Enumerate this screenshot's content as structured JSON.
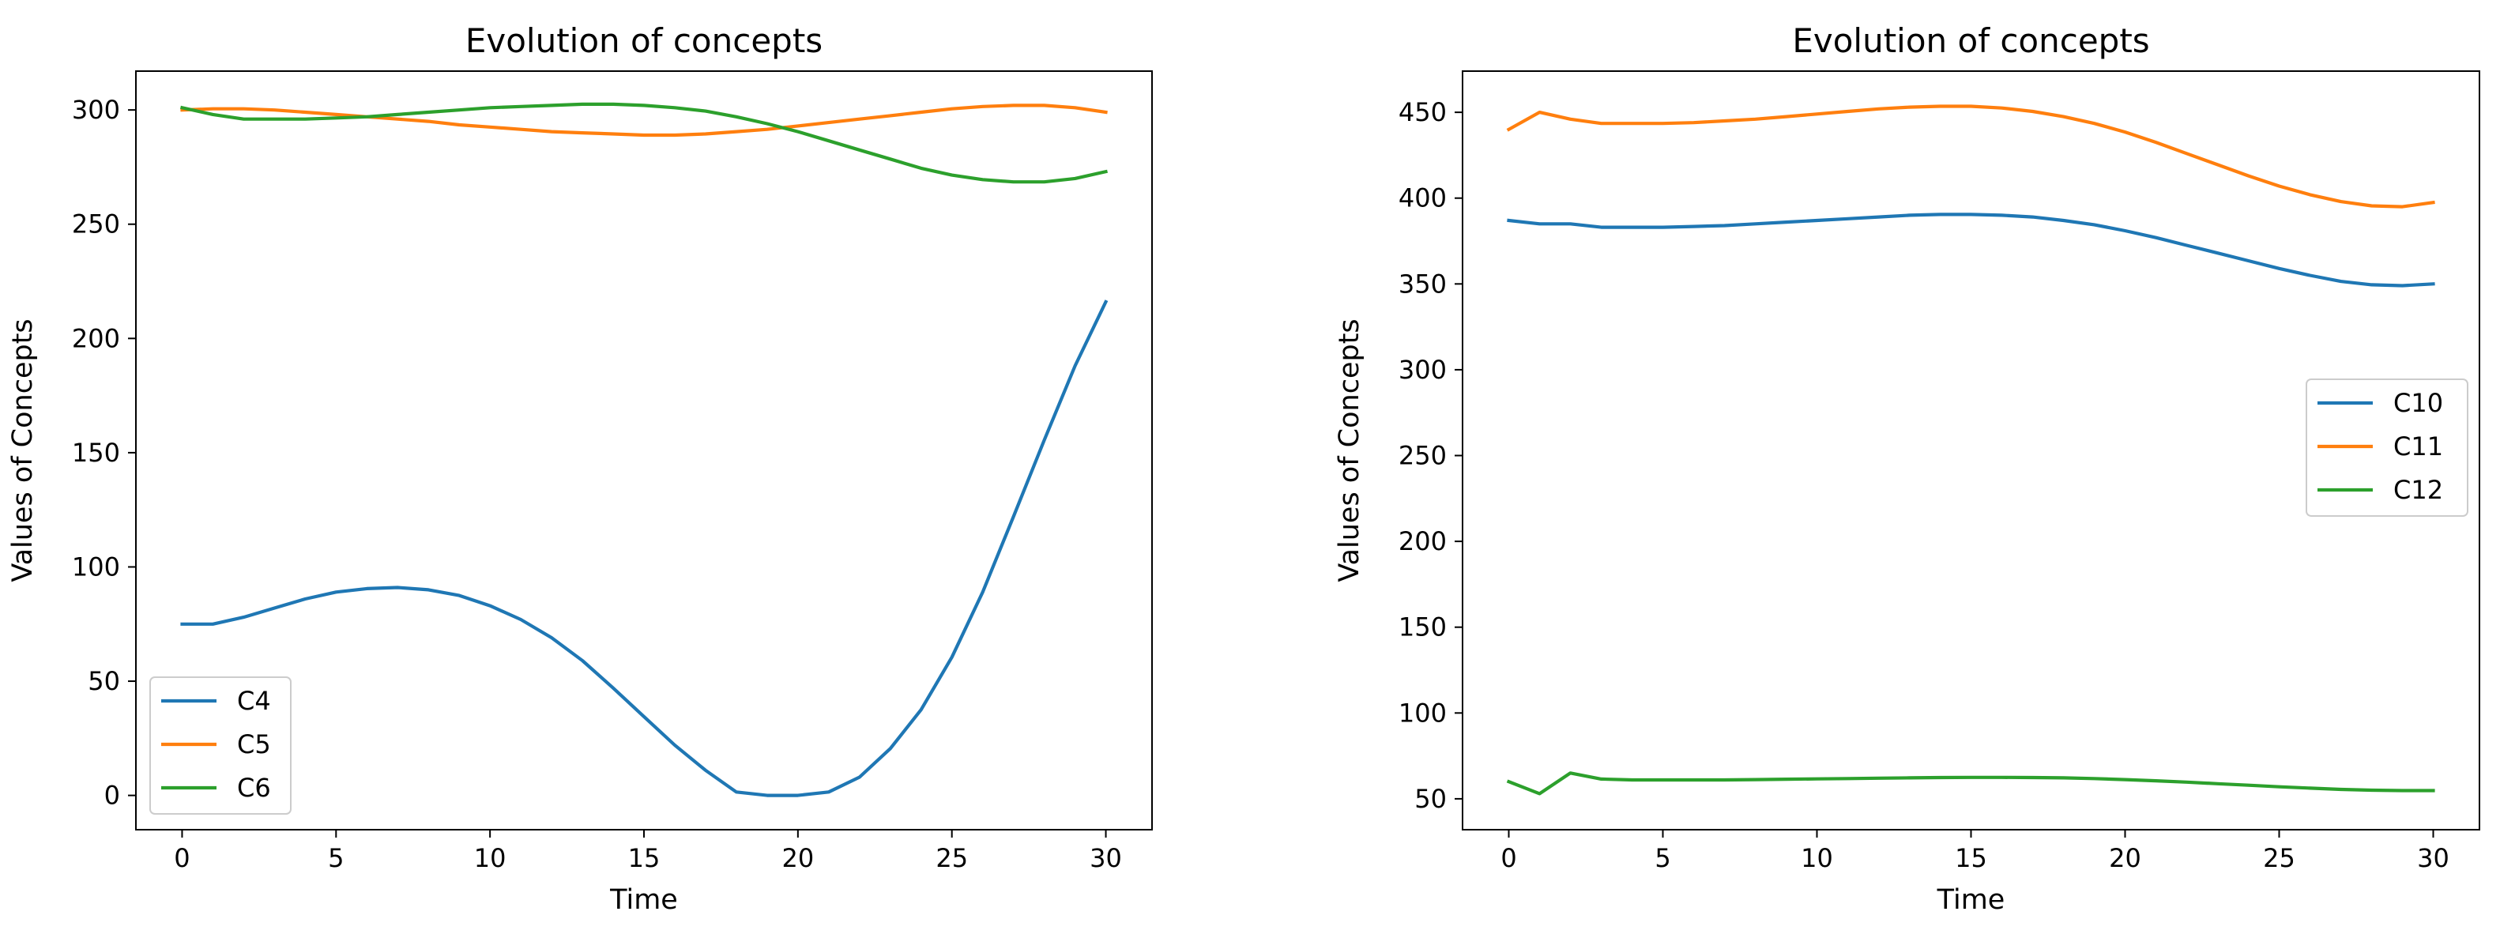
{
  "charts": [
    {
      "type": "line",
      "title": "Evolution of concepts",
      "xlabel": "Time",
      "ylabel": "Values of Concepts",
      "xlim": [
        -1.5,
        31.5
      ],
      "ylim": [
        -15,
        317
      ],
      "xticks": [
        0,
        5,
        10,
        15,
        20,
        25,
        30
      ],
      "yticks": [
        0,
        50,
        100,
        150,
        200,
        250,
        300
      ],
      "legend_position": "lower left",
      "grid": false,
      "x": [
        0,
        1,
        2,
        3,
        4,
        5,
        6,
        7,
        8,
        9,
        10,
        11,
        12,
        13,
        14,
        15,
        16,
        17,
        18,
        19,
        20,
        21,
        22,
        23,
        24,
        25,
        26,
        27,
        28,
        29,
        30
      ],
      "series": [
        {
          "name": "C4",
          "color": "#1f77b4",
          "values": [
            75,
            75,
            78,
            82,
            86,
            89,
            90.5,
            91,
            90,
            87.5,
            83,
            77,
            69,
            59,
            47,
            34.5,
            22,
            11,
            1.5,
            0,
            0,
            1.5,
            8,
            20.5,
            37.5,
            60.5,
            89,
            122,
            155.5,
            188,
            216
          ]
        },
        {
          "name": "C5",
          "color": "#ff7f0e",
          "values": [
            300,
            300.5,
            300.5,
            300,
            299,
            298,
            297,
            296,
            295,
            293.5,
            292.5,
            291.5,
            290.5,
            290,
            289.5,
            289,
            289,
            289.5,
            290.5,
            291.5,
            293,
            294.5,
            296,
            297.5,
            299,
            300.5,
            301.5,
            302,
            302,
            301,
            299
          ]
        },
        {
          "name": "C6",
          "color": "#2ca02c",
          "values": [
            301,
            298,
            296,
            296,
            296,
            296.5,
            297,
            298,
            299,
            300,
            301,
            301.5,
            302,
            302.5,
            302.5,
            302,
            301,
            299.5,
            297,
            294,
            290.5,
            286.5,
            282.5,
            278.5,
            274.5,
            271.5,
            269.5,
            268.5,
            268.5,
            270,
            273
          ]
        }
      ]
    },
    {
      "type": "line",
      "title": "Evolution of concepts",
      "xlabel": "Time",
      "ylabel": "Values of Concepts",
      "xlim": [
        -1.5,
        31.5
      ],
      "ylim": [
        32,
        474
      ],
      "xticks": [
        0,
        5,
        10,
        15,
        20,
        25,
        30
      ],
      "yticks": [
        50,
        100,
        150,
        200,
        250,
        300,
        350,
        400,
        450
      ],
      "legend_position": "center right",
      "grid": false,
      "x": [
        0,
        1,
        2,
        3,
        4,
        5,
        6,
        7,
        8,
        9,
        10,
        11,
        12,
        13,
        14,
        15,
        16,
        17,
        18,
        19,
        20,
        21,
        22,
        23,
        24,
        25,
        26,
        27,
        28,
        29,
        30
      ],
      "series": [
        {
          "name": "C10",
          "color": "#1f77b4",
          "values": [
            387,
            385,
            385,
            383,
            383,
            383,
            383.5,
            384,
            385,
            386,
            387,
            388,
            389,
            390,
            390.5,
            390.5,
            390,
            389,
            387,
            384.5,
            381,
            377,
            372.5,
            368,
            363.5,
            359,
            355,
            351.5,
            349.5,
            349,
            350
          ]
        },
        {
          "name": "C11",
          "color": "#ff7f0e",
          "values": [
            440,
            450,
            446,
            443.5,
            443.5,
            443.5,
            444,
            445,
            446,
            447.5,
            449,
            450.5,
            452,
            453,
            453.5,
            453.5,
            452.5,
            450.5,
            447.5,
            443.5,
            438.5,
            432.5,
            426,
            419.5,
            413,
            407,
            402,
            398,
            395.5,
            395,
            397.5
          ]
        },
        {
          "name": "C12",
          "color": "#2ca02c",
          "values": [
            60,
            53,
            65,
            61.5,
            61,
            61,
            61,
            61,
            61.2,
            61.4,
            61.6,
            61.8,
            62,
            62.2,
            62.4,
            62.5,
            62.5,
            62.4,
            62.2,
            61.8,
            61.2,
            60.5,
            59.7,
            58.8,
            57.9,
            57,
            56.2,
            55.5,
            55,
            54.8,
            54.8
          ]
        }
      ]
    }
  ]
}
